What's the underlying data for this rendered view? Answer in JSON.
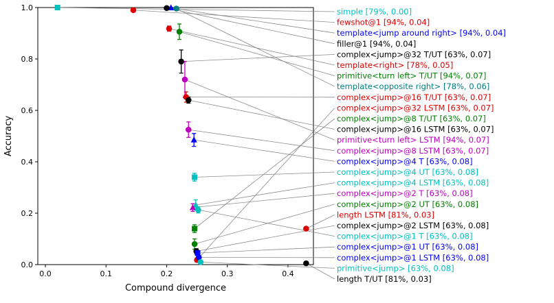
{
  "chart_data": {
    "type": "scatter",
    "title": "",
    "xlabel": "Compound divergence",
    "ylabel": "Accuracy",
    "xlim": [
      -0.0125,
      0.442
    ],
    "ylim": [
      0.0,
      1.0
    ],
    "x_ticks": [
      0.0,
      0.1,
      0.2,
      0.3,
      0.4
    ],
    "y_ticks": [
      0.0,
      0.2,
      0.4,
      0.6,
      0.8,
      1.0
    ],
    "grid": false,
    "legend_position": "right-outside",
    "legend_text_colored": true,
    "leader_lines": true,
    "leader_line_color": "#808080",
    "series": [
      {
        "label": "simple [79%, 0.00]",
        "color": "#00bfbf",
        "marker": "square",
        "x": 0.02,
        "y": 1.0,
        "yerr": 0.0
      },
      {
        "label": "fewshot@1 [94%, 0.04]",
        "color": "#dd0000",
        "marker": "circle",
        "x": 0.145,
        "y": 0.99,
        "yerr": 0.004
      },
      {
        "label": "template<jump around right> [94%, 0.04]",
        "color": "#0000ff",
        "marker": "triangle",
        "x": 0.207,
        "y": 0.999,
        "yerr": 0.002
      },
      {
        "label": "filler@1 [94%, 0.04]",
        "color": "#000000",
        "marker": "circle",
        "x": 0.2,
        "y": 0.998,
        "yerr": 0.003
      },
      {
        "label": "complex<jump>@32 T/UT [63%, 0.07]",
        "color": "#000000",
        "marker": "circle",
        "x": 0.224,
        "y": 0.79,
        "yerr": 0.045
      },
      {
        "label": "template<right> [78%, 0.05]",
        "color": "#dd0000",
        "marker": "circle",
        "x": 0.204,
        "y": 0.918,
        "yerr": 0.01
      },
      {
        "label": "primitive<turn left> T/UT [94%, 0.07]",
        "color": "#008000",
        "marker": "circle",
        "x": 0.221,
        "y": 0.906,
        "yerr": 0.03
      },
      {
        "label": "template<opposite right> [78%, 0.06]",
        "color": "#008080",
        "marker": "circle",
        "x": 0.216,
        "y": 0.996,
        "yerr": 0.003
      },
      {
        "label": "complex<jump>@16 T/UT [63%, 0.07]",
        "color": "#dd0000",
        "marker": "circle",
        "x": 0.232,
        "y": 0.652,
        "yerr": 0.02
      },
      {
        "label": "complex<jump>@32 LSTM [63%, 0.07]",
        "color": "#dd0000",
        "marker": "circle",
        "x": 0.25,
        "y": 0.018,
        "yerr": 0.008
      },
      {
        "label": "complex<jump>@8 T/UT [63%, 0.07]",
        "color": "#008000",
        "marker": "square",
        "x": 0.246,
        "y": 0.14,
        "yerr": 0.015
      },
      {
        "label": "complex<jump>@16 LSTM [63%, 0.07]",
        "color": "#000000",
        "marker": "circle",
        "x": 0.236,
        "y": 0.64,
        "yerr": 0.012
      },
      {
        "label": "primitive<turn left> LSTM [94%, 0.07]",
        "color": "#bf00bf",
        "marker": "circle",
        "x": 0.23,
        "y": 0.72,
        "yerr": 0.07
      },
      {
        "label": "complex<jump>@8 LSTM [63%, 0.07]",
        "color": "#bf00bf",
        "marker": "circle",
        "x": 0.236,
        "y": 0.525,
        "yerr": 0.03
      },
      {
        "label": "complex<jump>@4 T [63%, 0.08]",
        "color": "#0000ff",
        "marker": "triangle",
        "x": 0.245,
        "y": 0.485,
        "yerr": 0.025
      },
      {
        "label": "complex<jump>@4 UT [63%, 0.08]",
        "color": "#00bfbf",
        "marker": "square",
        "x": 0.246,
        "y": 0.34,
        "yerr": 0.015
      },
      {
        "label": "complex<jump>@4 LSTM [63%, 0.08]",
        "color": "#00bfbf",
        "marker": "triangle",
        "x": 0.248,
        "y": 0.232,
        "yerr": 0.02
      },
      {
        "label": "complex<jump>@2 T [63%, 0.08]",
        "color": "#bf00bf",
        "marker": "triangle",
        "x": 0.243,
        "y": 0.222,
        "yerr": 0.015
      },
      {
        "label": "complex<jump>@2 UT [63%, 0.08]",
        "color": "#008000",
        "marker": "circle",
        "x": 0.246,
        "y": 0.08,
        "yerr": 0.02
      },
      {
        "label": "length LSTM [81%, 0.03]",
        "color": "#dd0000",
        "marker": "circle",
        "x": 0.43,
        "y": 0.14,
        "yerr": 0.005
      },
      {
        "label": "complex<jump>@2 LSTM [63%, 0.08]",
        "color": "#000000",
        "marker": "circle",
        "x": 0.249,
        "y": 0.052,
        "yerr": 0.01
      },
      {
        "label": "complex<jump>@1 T [63%, 0.08]",
        "color": "#00bfbf",
        "marker": "circle",
        "x": 0.252,
        "y": 0.213,
        "yerr": 0.012
      },
      {
        "label": "complex<jump>@1 UT [63%, 0.08]",
        "color": "#0000ff",
        "marker": "square",
        "x": 0.251,
        "y": 0.045,
        "yerr": 0.01
      },
      {
        "label": "complex<jump>@1 LSTM [63%, 0.08]",
        "color": "#0000ff",
        "marker": "circle",
        "x": 0.253,
        "y": 0.028,
        "yerr": 0.008
      },
      {
        "label": "primitive<jump> [63%, 0.08]",
        "color": "#00bfbf",
        "marker": "circle",
        "x": 0.256,
        "y": 0.01,
        "yerr": 0.005
      },
      {
        "label": "length T/UT [81%, 0.03]",
        "color": "#000000",
        "marker": "circle",
        "x": 0.43,
        "y": 0.005,
        "yerr": 0.003
      }
    ]
  }
}
